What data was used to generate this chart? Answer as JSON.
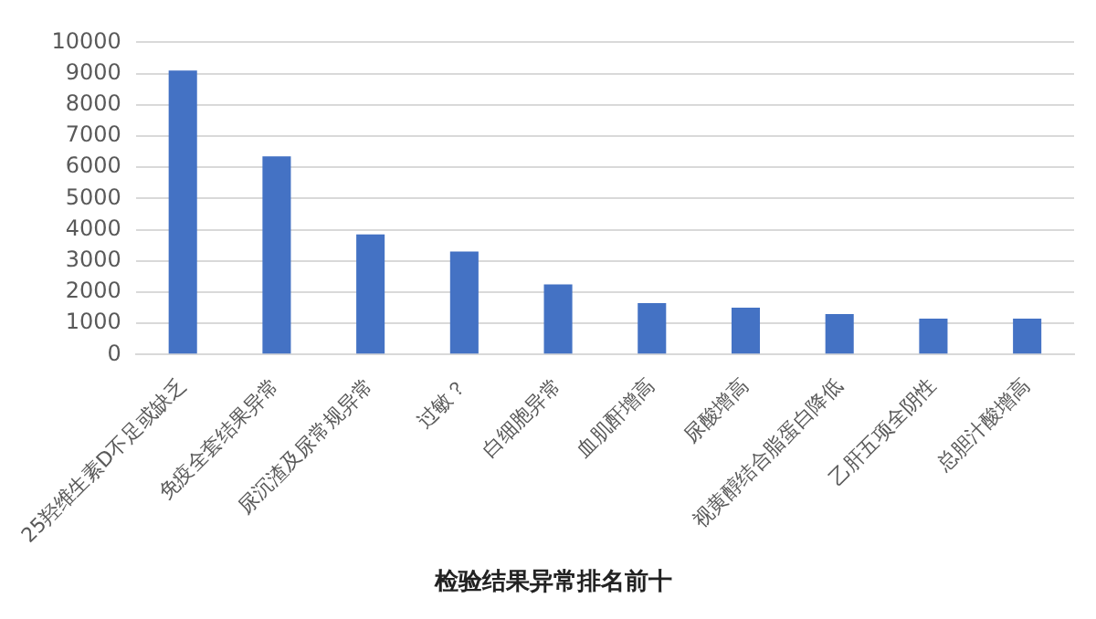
{
  "chart_data": {
    "type": "bar",
    "title": "检验结果异常排名前十",
    "categories": [
      "25羟维生素D不足或缺乏",
      "免疫全套结果异常",
      "尿沉渣及尿常规异常",
      "过敏？",
      "白细胞异常",
      "血肌酐增高",
      "尿酸增高",
      "视黄醇结合脂蛋白降低",
      "乙肝五项全阴性",
      "总胆汁酸增高"
    ],
    "values": [
      9100,
      6350,
      3850,
      3300,
      2250,
      1650,
      1500,
      1300,
      1150,
      1150
    ],
    "color": "#4472c4",
    "ylim": [
      0,
      10000
    ],
    "yticks": [
      0,
      1000,
      2000,
      3000,
      4000,
      5000,
      6000,
      7000,
      8000,
      9000,
      10000
    ],
    "grid": "y",
    "legend": false
  }
}
